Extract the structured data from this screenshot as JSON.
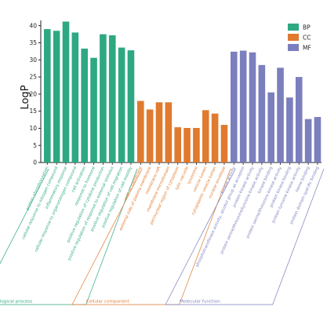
{
  "chart_data": {
    "type": "bar",
    "ylabel": "LogP",
    "ylim": [
      0,
      42
    ],
    "yticks": [
      "0",
      "5",
      "10",
      "15",
      "20",
      "25",
      "30",
      "35",
      "40"
    ],
    "legend_position": "top-right",
    "series": [
      {
        "name": "BP",
        "group_label": "Biological process",
        "color": "#2ea882",
        "categories": [
          "protein phosphorylation",
          "cellular response to nitrogen compound",
          "inflammatory response",
          "cellular response to organonitrogen compound",
          "cell activation",
          "response to hormone",
          "positive regulation of cytokine production",
          "positive regulation of response to external stimulus",
          "positive regulation of cell migration",
          "positive regulation of cell motility"
        ],
        "values": [
          39,
          38.5,
          41.2,
          38,
          33.3,
          30.6,
          37.5,
          37.2,
          33.6,
          32.8
        ]
      },
      {
        "name": "CC",
        "group_label": "Cellular component",
        "color": "#e07a2e",
        "categories": [
          "side of membrane",
          "external side of plasma membrane",
          "membrane raft",
          "membrane microdomain",
          "perinuclear region of cytoplasm",
          "lytic vacuole",
          "lysosome",
          "vesicle lumen",
          "cytoplasmic vesicle lumen",
          "nuclear envelope"
        ],
        "values": [
          18,
          15.5,
          17.6,
          17.6,
          10.3,
          10.1,
          10.1,
          15.3,
          14.3,
          11
        ]
      },
      {
        "name": "MF",
        "group_label": "Molecular function",
        "color": "#7b7fbd",
        "categories": [
          "kinase activity",
          "phosphotransferase activity, alcohol group as acceptor",
          "protein kinase activity",
          "protein serine/threonine/tyrosine kinase activity",
          "kinase binding",
          "protein serine/threonine kinase activity",
          "protein kinase binding",
          "protein tyrosine kinase activity",
          "heme binding",
          "protein domain specific binding"
        ],
        "values": [
          32.4,
          32.7,
          32.2,
          28.5,
          20.5,
          27.7,
          19,
          25,
          12.7,
          13.3
        ]
      }
    ]
  }
}
